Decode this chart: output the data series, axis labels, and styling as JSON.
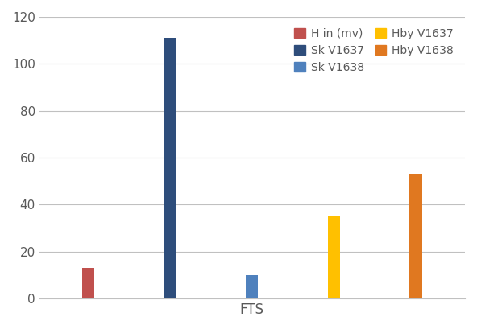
{
  "categories": [
    "FTS"
  ],
  "series": [
    {
      "label": "H in (mv)",
      "value": 13,
      "color": "#C0504D"
    },
    {
      "label": "Sk V1637",
      "value": 111,
      "color": "#2E4D7B"
    },
    {
      "label": "Sk V1638",
      "value": 10,
      "color": "#4F81BD"
    },
    {
      "label": "Hby V1637",
      "value": 35,
      "color": "#FFC000"
    },
    {
      "label": "Hby V1638",
      "value": 53,
      "color": "#E07820"
    }
  ],
  "xlabel": "FTS",
  "ylim": [
    0,
    120
  ],
  "yticks": [
    0,
    20,
    40,
    60,
    80,
    100,
    120
  ],
  "background_color": "#FFFFFF",
  "grid_color": "#C0C0C0",
  "bar_width": 0.15,
  "bar_positions": [
    1,
    2,
    3,
    4,
    5
  ],
  "xlim": [
    0.4,
    5.6
  ],
  "xtick_pos": 3.0,
  "legend_ncol": 2
}
